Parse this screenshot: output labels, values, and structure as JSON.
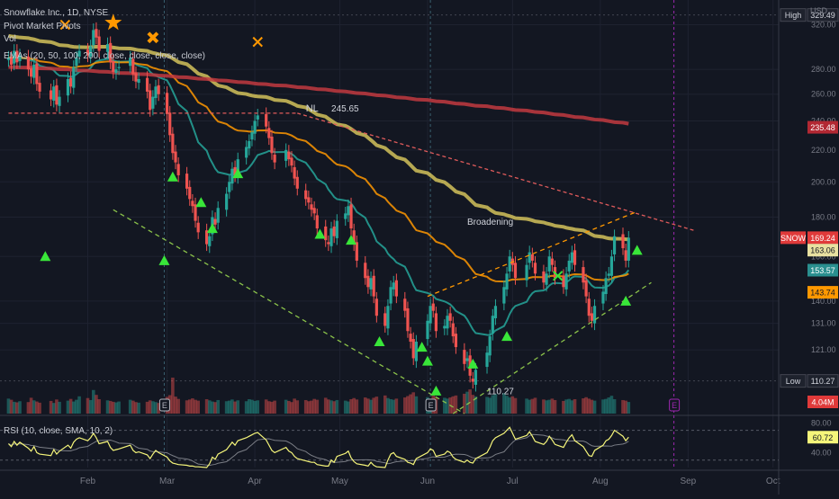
{
  "header": {
    "title": "Snowflake Inc., 1D, NYSE",
    "line2": "Pivot Market Pivots",
    "line3": "Vol",
    "line4": "EMAs (20, 50, 100, 200, close, close, close, close)",
    "currency": "USD"
  },
  "rsi_header": "RSI (10, close, SMA, 10, 2)",
  "annotations": {
    "nl_label": "NL",
    "nl_value": "245.65",
    "broadening": "Broadening",
    "low_value": "110.27"
  },
  "price_tags": [
    {
      "label": "High",
      "value": "329.49",
      "price": 329.49,
      "bg": "#1e222d",
      "fg": "#d1d4dc",
      "border": "#434651"
    },
    {
      "label": "",
      "value": "235.48",
      "price": 235.48,
      "bg": "#b22833",
      "fg": "#ffffff"
    },
    {
      "label": "SNOW",
      "value": "169.24",
      "price": 169.24,
      "bg": "#e03a3a",
      "fg": "#ffffff"
    },
    {
      "label": "",
      "value": "163.06",
      "price": 163.06,
      "bg": "#e8e0a0",
      "fg": "#131722"
    },
    {
      "label": "",
      "value": "153.57",
      "price": 153.57,
      "bg": "#2a8f8f",
      "fg": "#ffffff"
    },
    {
      "label": "",
      "value": "143.74",
      "price": 143.74,
      "bg": "#ff9800",
      "fg": "#131722"
    },
    {
      "label": "Low",
      "value": "110.27",
      "price": 110.27,
      "bg": "#1e222d",
      "fg": "#d1d4dc",
      "border": "#434651"
    }
  ],
  "volume_tag": {
    "value": "4.04M",
    "bg": "#e03a3a",
    "fg": "#ffffff"
  },
  "rsi_tag": {
    "value": "60.72",
    "bg": "#f5f57a",
    "fg": "#131722"
  },
  "chart_data": {
    "type": "candlestick",
    "price_axis": {
      "scale": "log",
      "ylim": [
        100,
        340
      ],
      "ticks": [
        121,
        131,
        140,
        160,
        180,
        200,
        220,
        240,
        260,
        280,
        320
      ],
      "unit": "USD"
    },
    "rsi_axis": {
      "ylim": [
        20,
        90
      ],
      "ticks": [
        80,
        40
      ],
      "bands": [
        70,
        30
      ]
    },
    "x_axis": {
      "labels": [
        "Feb",
        "Mar",
        "Apr",
        "May",
        "Jun",
        "Jul",
        "Aug",
        "Sep",
        "Oct"
      ],
      "label_days": [
        31,
        59,
        90,
        120,
        151,
        181,
        212,
        243,
        273
      ]
    },
    "days": [
      3,
      4,
      5,
      6,
      7,
      10,
      11,
      12,
      13,
      14,
      18,
      19,
      20,
      21,
      24,
      25,
      26,
      27,
      28,
      31,
      32,
      33,
      34,
      35,
      38,
      39,
      40,
      41,
      42,
      46,
      47,
      48,
      49,
      52,
      53,
      54,
      55,
      56,
      59,
      60,
      61,
      62,
      63,
      66,
      67,
      68,
      69,
      70,
      73,
      74,
      75,
      76,
      77,
      80,
      81,
      82,
      83,
      84,
      87,
      88,
      89,
      90,
      91,
      94,
      95,
      96,
      97,
      101,
      102,
      103,
      104,
      105,
      108,
      109,
      110,
      111,
      112,
      115,
      116,
      117,
      118,
      119,
      122,
      123,
      124,
      125,
      126,
      129,
      130,
      131,
      132,
      133,
      136,
      137,
      138,
      139,
      140,
      143,
      144,
      145,
      146,
      147,
      151,
      152,
      153,
      154,
      157,
      158,
      159,
      160,
      161,
      164,
      165,
      166,
      167,
      168,
      172,
      173,
      174,
      175,
      178,
      179,
      180,
      181,
      182,
      186,
      187,
      188,
      189,
      192,
      193,
      194,
      195,
      196,
      199,
      200,
      201,
      202,
      203,
      206,
      207,
      208,
      209,
      210,
      213,
      214,
      215,
      216,
      217,
      220,
      221,
      222
    ],
    "close": [
      290,
      284,
      296,
      286,
      292,
      280,
      274,
      284,
      268,
      262,
      256,
      266,
      252,
      258,
      272,
      266,
      282,
      290,
      296,
      292,
      300,
      315,
      308,
      296,
      302,
      286,
      278,
      280,
      282,
      290,
      276,
      270,
      272,
      262,
      248,
      258,
      266,
      260,
      245,
      230,
      218,
      212,
      204,
      196,
      190,
      186,
      178,
      172,
      166,
      170,
      180,
      176,
      185,
      193,
      200,
      208,
      204,
      214,
      222,
      226,
      232,
      240,
      244,
      236,
      228,
      218,
      212,
      220,
      214,
      210,
      202,
      196,
      190,
      188,
      184,
      182,
      174,
      168,
      166,
      174,
      170,
      178,
      182,
      186,
      174,
      166,
      158,
      150,
      146,
      150,
      142,
      134,
      130,
      138,
      146,
      148,
      142,
      136,
      128,
      124,
      118,
      124,
      132,
      138,
      136,
      128,
      130,
      134,
      132,
      126,
      122,
      116,
      118,
      112,
      110,
      114,
      120,
      126,
      134,
      138,
      146,
      152,
      160,
      156,
      150,
      156,
      162,
      158,
      152,
      148,
      152,
      160,
      156,
      150,
      146,
      152,
      158,
      162,
      156,
      148,
      142,
      134,
      132,
      138,
      144,
      150,
      152,
      160,
      170,
      164,
      158,
      169.24
    ],
    "open": [
      288,
      290,
      285,
      296,
      287,
      291,
      281,
      273,
      285,
      269,
      263,
      255,
      267,
      251,
      259,
      273,
      265,
      283,
      291,
      297,
      291,
      301,
      316,
      309,
      295,
      303,
      287,
      277,
      281,
      283,
      289,
      277,
      269,
      273,
      263,
      249,
      257,
      267,
      261,
      246,
      231,
      219,
      211,
      205,
      197,
      189,
      187,
      177,
      173,
      165,
      171,
      179,
      177,
      184,
      194,
      199,
      209,
      203,
      215,
      221,
      227,
      231,
      241,
      245,
      235,
      229,
      217,
      213,
      219,
      215,
      209,
      203,
      195,
      191,
      187,
      185,
      181,
      175,
      167,
      165,
      175,
      169,
      179,
      181,
      187,
      173,
      167,
      157,
      151,
      145,
      151,
      141,
      135,
      129,
      139,
      145,
      149,
      141,
      137,
      127,
      125,
      117,
      125,
      131,
      139,
      135,
      129,
      129,
      135,
      131,
      127,
      121,
      117,
      119,
      111,
      109,
      115,
      119,
      127,
      133,
      139,
      145,
      153,
      159,
      157,
      149,
      157,
      161,
      157,
      153,
      147,
      153,
      159,
      155,
      151,
      145,
      153,
      157,
      163,
      155,
      149,
      141,
      135,
      131,
      139,
      143,
      151,
      151,
      161,
      171,
      163,
      158
    ],
    "volume": [
      5.2,
      4.8,
      4.1,
      3.9,
      4.3,
      4.0,
      5.5,
      4.6,
      4.2,
      3.8,
      4.4,
      3.7,
      4.9,
      4.1,
      4.5,
      5.1,
      4.2,
      4.8,
      6.0,
      5.4,
      4.7,
      8.2,
      6.5,
      5.0,
      4.6,
      4.4,
      4.1,
      3.9,
      4.2,
      4.8,
      4.5,
      4.0,
      3.8,
      4.1,
      4.6,
      4.3,
      4.0,
      3.7,
      5.8,
      6.4,
      12.5,
      5.9,
      5.1,
      4.6,
      4.9,
      5.3,
      4.8,
      4.5,
      5.0,
      4.6,
      4.2,
      4.0,
      4.7,
      4.3,
      4.5,
      4.9,
      4.2,
      4.6,
      4.3,
      5.0,
      4.8,
      4.4,
      4.6,
      4.9,
      4.3,
      4.1,
      4.5,
      4.8,
      4.4,
      4.0,
      5.2,
      4.6,
      4.7,
      4.3,
      4.5,
      5.1,
      4.8,
      5.5,
      4.9,
      4.6,
      4.3,
      4.7,
      4.5,
      4.2,
      5.0,
      5.4,
      4.9,
      5.6,
      5.2,
      4.8,
      5.5,
      5.9,
      6.3,
      5.4,
      5.0,
      4.8,
      5.2,
      5.6,
      6.1,
      6.7,
      7.4,
      6.0,
      5.7,
      5.2,
      7.0,
      5.8,
      5.5,
      5.2,
      5.6,
      6.0,
      6.3,
      6.9,
      7.6,
      8.4,
      6.5,
      6.0,
      5.8,
      5.5,
      6.4,
      6.8,
      7.1,
      6.2,
      5.6,
      6.0,
      5.4,
      5.2,
      4.8,
      5.1,
      5.5,
      4.9,
      4.6,
      4.8,
      5.2,
      4.7,
      4.4,
      4.9,
      5.1,
      4.6,
      5.0,
      5.3,
      5.7,
      5.2,
      4.8,
      4.5,
      4.9,
      5.1,
      5.6,
      6.2,
      5.0,
      4.7,
      4.5,
      4.04
    ],
    "rsi": [
      52,
      48,
      55,
      50,
      54,
      46,
      42,
      48,
      40,
      38,
      36,
      44,
      38,
      42,
      50,
      46,
      54,
      58,
      60,
      56,
      60,
      66,
      60,
      52,
      55,
      47,
      43,
      44,
      45,
      50,
      43,
      40,
      41,
      37,
      32,
      38,
      43,
      40,
      34,
      29,
      26,
      25,
      24,
      23,
      22,
      22,
      21,
      21,
      20,
      25,
      34,
      31,
      38,
      44,
      49,
      54,
      50,
      56,
      60,
      62,
      64,
      66,
      67,
      57,
      50,
      43,
      40,
      47,
      42,
      40,
      35,
      32,
      29,
      28,
      27,
      27,
      24,
      22,
      22,
      30,
      27,
      35,
      39,
      42,
      33,
      28,
      25,
      23,
      22,
      27,
      23,
      21,
      20,
      30,
      38,
      40,
      35,
      31,
      27,
      26,
      24,
      32,
      40,
      45,
      43,
      35,
      38,
      42,
      40,
      34,
      31,
      27,
      30,
      27,
      26,
      32,
      40,
      47,
      56,
      60,
      66,
      70,
      74,
      66,
      58,
      63,
      68,
      62,
      55,
      51,
      55,
      62,
      57,
      51,
      47,
      54,
      60,
      64,
      56,
      48,
      42,
      36,
      35,
      43,
      50,
      56,
      58,
      63,
      70,
      62,
      56,
      60.72
    ],
    "rsi_sma_values": "computed",
    "emas": [
      {
        "period": 20,
        "color": "#26a69a"
      },
      {
        "period": 50,
        "color": "#ff9800"
      },
      {
        "period": 100,
        "color": "#d4c25a"
      },
      {
        "period": 200,
        "color": "#c2393f",
        "values_override": [
          282,
          238
        ]
      }
    ],
    "pivot_high": 329.49,
    "pivot_low": 110.27,
    "lines": [
      {
        "kind": "neckline",
        "from": [
          3,
          245.65
        ],
        "to": [
          105,
          245.65
        ],
        "color": "#e05b5b",
        "dash": "4,3"
      },
      {
        "kind": "neckline_extension",
        "from": [
          105,
          245.65
        ],
        "to": [
          245,
          173
        ],
        "color": "#e05b5b",
        "dash": "4,3"
      },
      {
        "kind": "support",
        "from": [
          40,
          184
        ],
        "to": [
          164,
          100
        ],
        "color": "#8bc34a",
        "dash": "5,4"
      },
      {
        "kind": "support",
        "from": [
          160,
          100
        ],
        "to": [
          230,
          148
        ],
        "color": "#8bc34a",
        "dash": "5,4"
      },
      {
        "kind": "resistance",
        "from": [
          151,
          142
        ],
        "to": [
          225,
          183
        ],
        "color": "#ff9800",
        "dash": "5,4"
      }
    ],
    "vertical_markers": [
      {
        "day": 58,
        "color": "#3a6070",
        "dash": "3,3"
      },
      {
        "day": 152,
        "color": "#3a6070",
        "dash": "3,3"
      },
      {
        "day": 238,
        "color": "#9c27b0",
        "dash": "3,3"
      }
    ],
    "earnings_markers": [
      {
        "day": 58,
        "label": "E",
        "color": "#b2b5be"
      },
      {
        "day": 152,
        "label": "E",
        "color": "#b2b5be"
      },
      {
        "day": 238,
        "label": "E",
        "color": "#9c27b0"
      }
    ],
    "buy_signals": [
      [
        16,
        160
      ],
      [
        58,
        158
      ],
      [
        61,
        203
      ],
      [
        71,
        188
      ],
      [
        75,
        174
      ],
      [
        84,
        205
      ],
      [
        113,
        171
      ],
      [
        124,
        168
      ],
      [
        134,
        124
      ],
      [
        149,
        122
      ],
      [
        151,
        117
      ],
      [
        154,
        107
      ],
      [
        167,
        116
      ],
      [
        179,
        126
      ],
      [
        221,
        140
      ],
      [
        225,
        163
      ]
    ],
    "sell_crosses": [
      [
        23,
        320
      ],
      [
        54,
        308
      ],
      [
        91,
        304
      ],
      [
        197,
        151
      ]
    ],
    "stars": [
      [
        40,
        322
      ]
    ]
  }
}
